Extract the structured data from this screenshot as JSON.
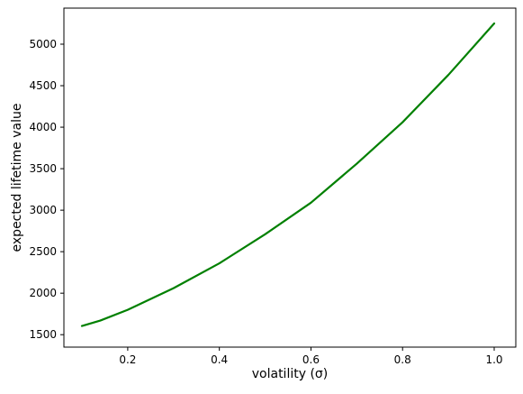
{
  "chart_data": {
    "type": "line",
    "title": "",
    "xlabel": "volatility (σ)",
    "ylabel": "expected lifetime value",
    "xlim": [
      0.1,
      1.0
    ],
    "ylim": [
      1600,
      5250
    ],
    "xticks": [
      0.2,
      0.4,
      0.6,
      0.8,
      1.0
    ],
    "xtick_labels": [
      "0.2",
      "0.4",
      "0.6",
      "0.8",
      "1.0"
    ],
    "yticks": [
      1500,
      2000,
      2500,
      3000,
      3500,
      4000,
      4500,
      5000
    ],
    "ytick_labels": [
      "1500",
      "2000",
      "2500",
      "3000",
      "3500",
      "4000",
      "4500",
      "5000"
    ],
    "grid": false,
    "legend": "none",
    "series": [
      {
        "color": "#008000",
        "x": [
          0.1,
          0.14,
          0.2,
          0.3,
          0.4,
          0.5,
          0.6,
          0.7,
          0.8,
          0.9,
          1.0
        ],
        "y": [
          1605,
          1670,
          1800,
          2060,
          2360,
          2710,
          3090,
          3560,
          4060,
          4630,
          5250
        ]
      }
    ]
  }
}
